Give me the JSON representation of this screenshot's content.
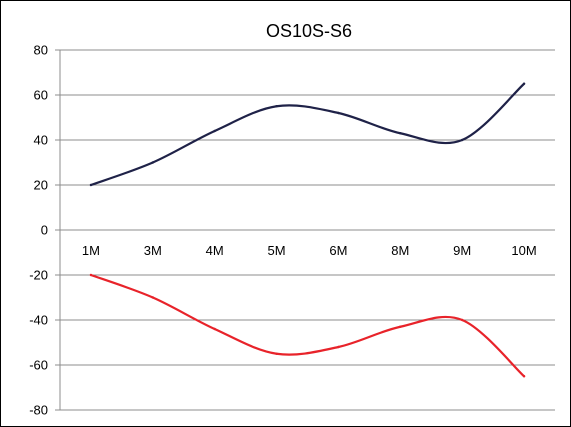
{
  "chart_data": {
    "type": "line",
    "title": "OS10S-S6",
    "xlabel": "",
    "ylabel": "",
    "categories": [
      "1M",
      "3M",
      "4M",
      "5M",
      "6M",
      "8M",
      "9M",
      "10M"
    ],
    "ylim": [
      -80,
      80
    ],
    "yticks": [
      80,
      60,
      40,
      20,
      0,
      -20,
      -40,
      -60,
      -80
    ],
    "grid": true,
    "legend": "none",
    "smooth": true,
    "series": [
      {
        "values": [
          20,
          30,
          44,
          55,
          52,
          43,
          40,
          65
        ],
        "color": "#1f2248"
      },
      {
        "values": [
          -20,
          -30,
          -44,
          -55,
          -52,
          -43,
          -40,
          -65
        ],
        "color": "#e8232a"
      }
    ]
  }
}
